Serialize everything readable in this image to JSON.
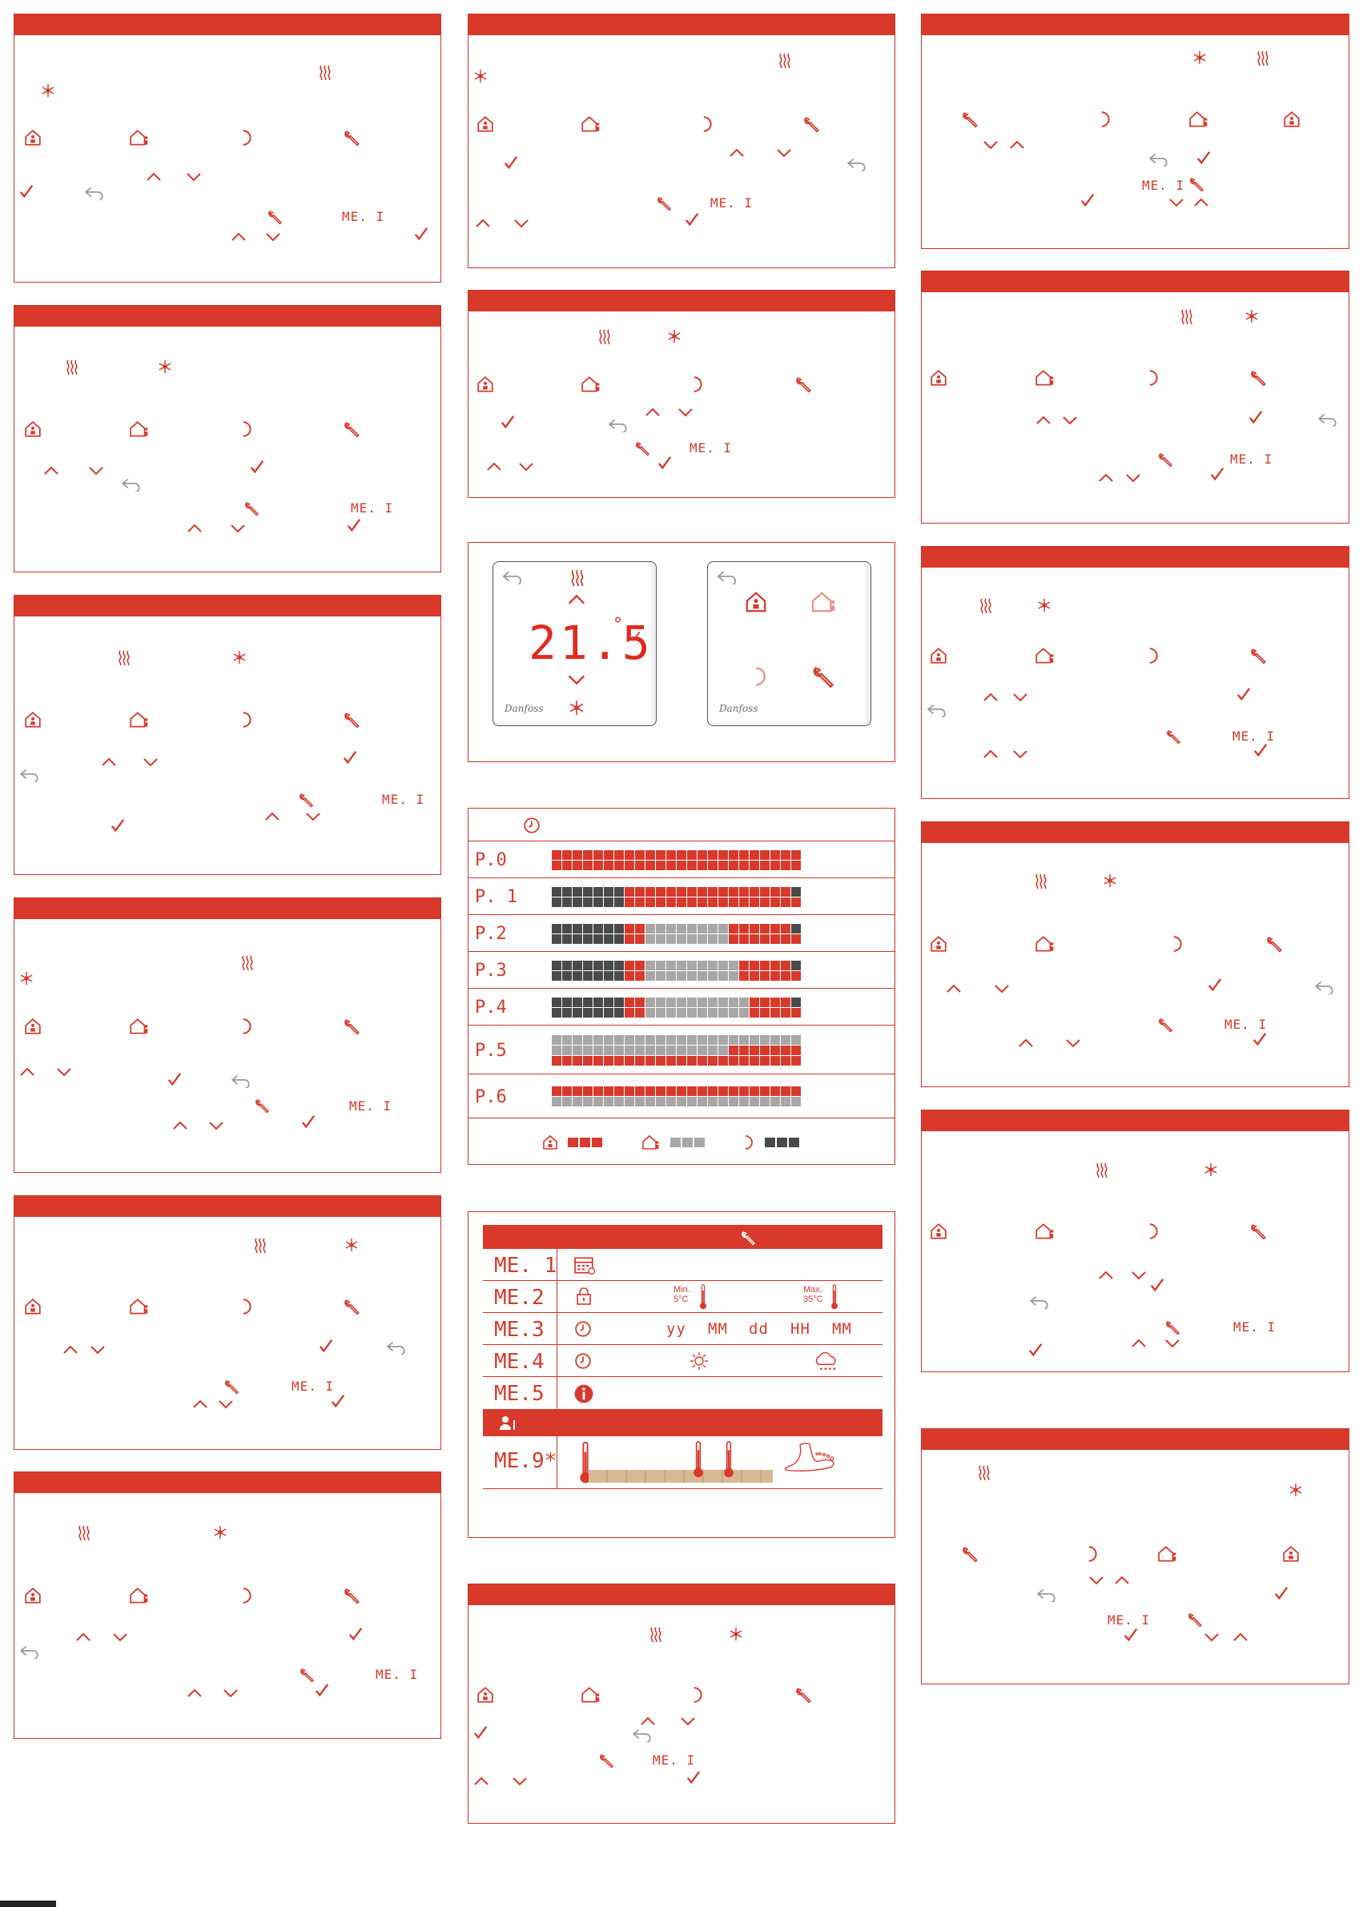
{
  "icons": {
    "heat": "heating-waves-icon",
    "cool": "snowflake-icon",
    "home": "home-mode-icon",
    "away": "away-mode-icon",
    "night": "night-moon-icon",
    "settings": "wrench-icon",
    "up": "chevron-up-icon",
    "down": "chevron-down-icon",
    "ok": "checkmark-icon",
    "back": "back-arrow-icon",
    "clock": "clock-icon",
    "calendar": "calendar-icon",
    "lock": "lock-icon",
    "info": "info-icon",
    "sun": "sun-icon",
    "rain": "rain-cloud-icon",
    "installer": "installer-icon",
    "thermometer": "thermometer-icon",
    "foot": "bare-foot-icon"
  },
  "segment": {
    "menu1": "ME. I"
  },
  "device": {
    "temperature": "21.5",
    "degree": "°",
    "brand": "Danfoss"
  },
  "schedule": {
    "rows": [
      {
        "label": "P.0",
        "top": "rrrrrrrrrrrrrrrrrrrrrrrr",
        "bottom": "rrrrrrrrrrrrrrrrrrrrrrrr"
      },
      {
        "label": "P. 1",
        "top": "dddddddrrrrrrrrrrrrrrrrd",
        "bottom": "dddddddrrrrrrrrrrrrrrrrr"
      },
      {
        "label": "P.2",
        "top": "dddddddrrggggggggrrrrrrd",
        "bottom": "dddddddrrggggggggrrrrrrr"
      },
      {
        "label": "P.3",
        "top": "dddddddrrgggggggggrrrrrd",
        "bottom": "dddddddrrgggggggggrrrrrr"
      },
      {
        "label": "P.4",
        "top": "dddddddrrggggggggggrrrrd",
        "bottom": "dddddddrrggggggggggrrrrr"
      },
      {
        "label": "P.5",
        "top": "gggggggggggggggggggggggg",
        "middle": "gggggggggggggggggrrrrrrr",
        "bottom": "rrrrrrrrrrrrrrrrrrrrrrrr"
      },
      {
        "label": "P.6",
        "top": "rrrrrrrrrrrrrrrrrrrrrrrr",
        "bottom": "gggggggggggggggggggggggg"
      }
    ]
  },
  "menu": {
    "items": [
      {
        "code": "ME. 1"
      },
      {
        "code": "ME.2",
        "min": "Min.",
        "min_val": "5°C",
        "max": "Max.",
        "max_val": "35°C"
      },
      {
        "code": "ME.3",
        "yy": "yy",
        "mm": "MM",
        "dd": "dd",
        "hh": "HH",
        "mi": "MM"
      },
      {
        "code": "ME.4"
      },
      {
        "code": "ME.5"
      }
    ],
    "installer_item": {
      "code": "ME.9*"
    }
  },
  "colors": {
    "accent": "#d8392b",
    "gray_cell": "#a7a7a7",
    "dark_cell": "#4a4a4a"
  }
}
